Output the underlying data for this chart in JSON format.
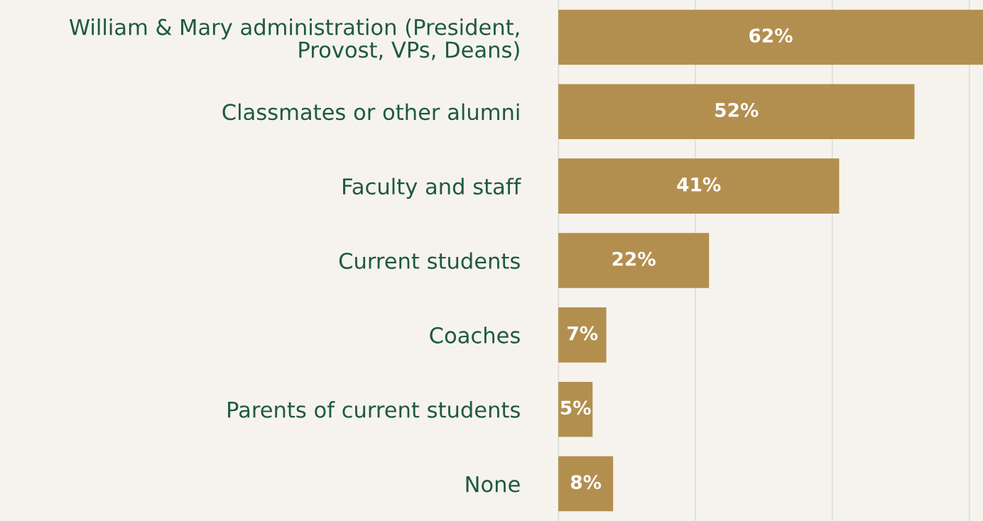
{
  "chart_data": {
    "type": "bar",
    "orientation": "horizontal",
    "categories": [
      "William & Mary administration (President,\nProvost, VPs, Deans)",
      "Classmates or other alumni",
      "Faculty and staff",
      "Current students",
      "Coaches",
      "Parents of current students",
      "None"
    ],
    "values": [
      62,
      52,
      41,
      22,
      7,
      5,
      8
    ],
    "value_labels": [
      "62%",
      "52%",
      "41%",
      "22%",
      "7%",
      "5%",
      "8%"
    ],
    "color": "#b38f4f",
    "xlim": [
      0,
      62
    ],
    "xticks": [
      {
        "value": 0,
        "label": null
      },
      {
        "value": 20,
        "label": null
      },
      {
        "value": 40,
        "label": null
      },
      {
        "value": 60,
        "label": null
      }
    ],
    "tick_labels": "y",
    "grid": "x"
  }
}
